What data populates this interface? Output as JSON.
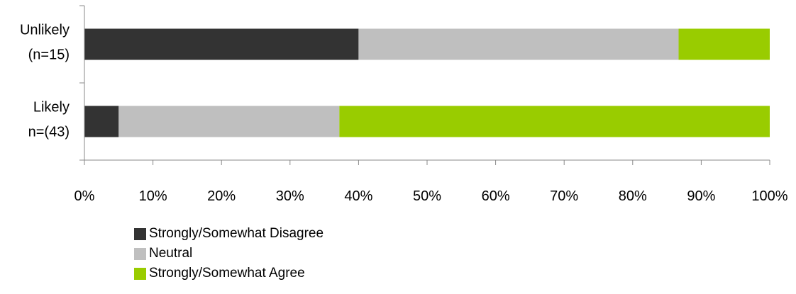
{
  "chart_data": {
    "type": "bar",
    "orientation": "horizontal",
    "stacked": true,
    "categories": [
      {
        "lines": [
          "Unlikely",
          "(n=15)"
        ]
      },
      {
        "lines": [
          "Likely",
          "n=(43)"
        ]
      }
    ],
    "series": [
      {
        "name": "Strongly/Somewhat Disagree",
        "color": "#333333",
        "values": [
          40,
          5
        ]
      },
      {
        "name": "Neutral",
        "color": "#bfbfbf",
        "values": [
          46.7,
          32.2
        ]
      },
      {
        "name": "Strongly/Somewhat Agree",
        "color": "#99cc00",
        "values": [
          13.3,
          62.8
        ]
      }
    ],
    "xlim": [
      0,
      100
    ],
    "x_ticks": [
      "0%",
      "10%",
      "20%",
      "30%",
      "40%",
      "50%",
      "60%",
      "70%",
      "80%",
      "90%",
      "100%"
    ],
    "grid": false,
    "legend_position": "bottom-left",
    "title": "",
    "xlabel": "",
    "ylabel": ""
  }
}
